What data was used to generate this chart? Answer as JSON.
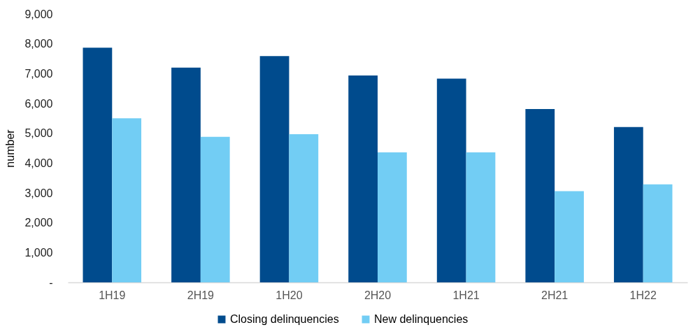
{
  "chart_data": {
    "type": "bar",
    "ylabel": "number",
    "categories": [
      "1H19",
      "2H19",
      "1H20",
      "2H20",
      "1H21",
      "2H21",
      "1H22"
    ],
    "series": [
      {
        "name": "Closing delinquencies",
        "color": "#004b8d",
        "values": [
          7870,
          7200,
          7590,
          6940,
          6830,
          5810,
          5210
        ]
      },
      {
        "name": "New delinquencies",
        "color": "#72cdf4",
        "values": [
          5500,
          4880,
          4970,
          4360,
          4360,
          3060,
          3290
        ]
      }
    ],
    "ylim": [
      0,
      9000
    ],
    "yticks": [
      {
        "value": 0,
        "label": "-"
      },
      {
        "value": 1000,
        "label": "1,000"
      },
      {
        "value": 2000,
        "label": "2,000"
      },
      {
        "value": 3000,
        "label": "3,000"
      },
      {
        "value": 4000,
        "label": "4,000"
      },
      {
        "value": 5000,
        "label": "5,000"
      },
      {
        "value": 6000,
        "label": "6,000"
      },
      {
        "value": 7000,
        "label": "7,000"
      },
      {
        "value": 8000,
        "label": "8,000"
      },
      {
        "value": 9000,
        "label": "9,000"
      }
    ],
    "grid": false,
    "legend": "bottom"
  }
}
